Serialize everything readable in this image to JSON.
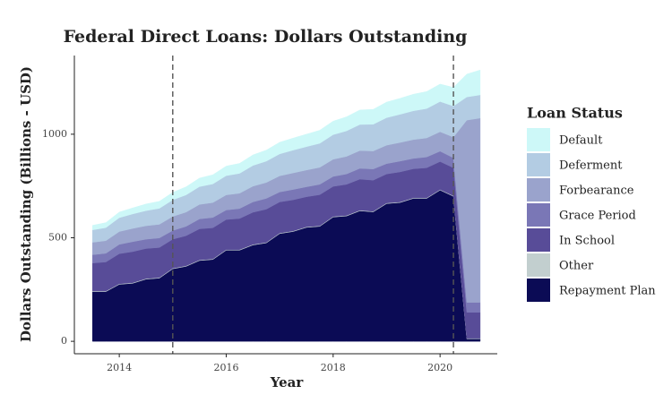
{
  "chart_data": {
    "type": "stacked_area",
    "title": "Federal Direct Loans: Dollars Outstanding",
    "x_label": "Year",
    "y_label": "Dollars Outstanding (Billions - USD)",
    "legend_title": "Loan Status",
    "legend": "right",
    "grid": false,
    "x": [
      2013.5,
      2013.75,
      2014,
      2014.25,
      2014.5,
      2014.75,
      2015,
      2015.25,
      2015.5,
      2015.75,
      2016,
      2016.25,
      2016.5,
      2016.75,
      2017,
      2017.25,
      2017.5,
      2017.75,
      2018,
      2018.25,
      2018.5,
      2018.75,
      2019,
      2019.25,
      2019.5,
      2019.75,
      2020,
      2020.25,
      2020.5,
      2020.75
    ],
    "xlim": [
      2013.16,
      2021.07
    ],
    "xticks": [
      2014,
      2016,
      2018,
      2020
    ],
    "ylim": [
      -60,
      1380
    ],
    "yticks": [
      0,
      500,
      1000
    ],
    "vlines": [
      2015,
      2020.25
    ],
    "series": [
      {
        "name": "Repayment Plan",
        "color": "#0b0b55",
        "values": [
          240,
          240,
          275,
          280,
          300,
          305,
          350,
          362,
          390,
          395,
          440,
          440,
          465,
          475,
          520,
          530,
          550,
          555,
          600,
          605,
          630,
          625,
          665,
          670,
          690,
          690,
          730,
          700,
          12,
          12
        ]
      },
      {
        "name": "Other",
        "color": "#c2cfcf",
        "values": [
          3,
          3,
          3,
          3,
          3,
          3,
          3,
          3,
          3,
          3,
          3,
          3,
          3,
          3,
          3,
          3,
          3,
          3,
          3,
          3,
          3,
          3,
          3,
          3,
          3,
          3,
          3,
          3,
          3,
          3
        ]
      },
      {
        "name": "In School",
        "color": "#584c98",
        "values": [
          135,
          140,
          145,
          150,
          145,
          145,
          140,
          145,
          150,
          150,
          145,
          150,
          155,
          160,
          150,
          150,
          145,
          150,
          145,
          150,
          150,
          150,
          140,
          145,
          140,
          145,
          135,
          135,
          125,
          125
        ]
      },
      {
        "name": "Grace Period",
        "color": "#7a77b6",
        "values": [
          40,
          42,
          45,
          48,
          45,
          46,
          42,
          45,
          48,
          50,
          46,
          48,
          50,
          52,
          48,
          50,
          48,
          50,
          48,
          50,
          52,
          54,
          50,
          52,
          50,
          52,
          50,
          48,
          48,
          48
        ]
      },
      {
        "name": "Forbearance",
        "color": "#9aa3cc",
        "values": [
          60,
          61,
          62,
          64,
          65,
          66,
          68,
          69,
          70,
          72,
          73,
          74,
          76,
          77,
          78,
          80,
          81,
          82,
          83,
          85,
          86,
          87,
          89,
          90,
          91,
          92,
          94,
          100,
          880,
          890
        ]
      },
      {
        "name": "Deferment",
        "color": "#b3cce3",
        "values": [
          60,
          63,
          67,
          70,
          73,
          77,
          80,
          83,
          86,
          90,
          93,
          96,
          100,
          103,
          106,
          110,
          113,
          116,
          119,
          123,
          126,
          129,
          133,
          136,
          139,
          142,
          146,
          150,
          112,
          112
        ]
      },
      {
        "name": "Default",
        "color": "#cdf8f8",
        "values": [
          22,
          24,
          27,
          29,
          32,
          34,
          36,
          39,
          41,
          44,
          46,
          48,
          51,
          53,
          56,
          58,
          60,
          63,
          65,
          68,
          70,
          72,
          75,
          77,
          80,
          82,
          84,
          90,
          110,
          120
        ]
      }
    ]
  }
}
